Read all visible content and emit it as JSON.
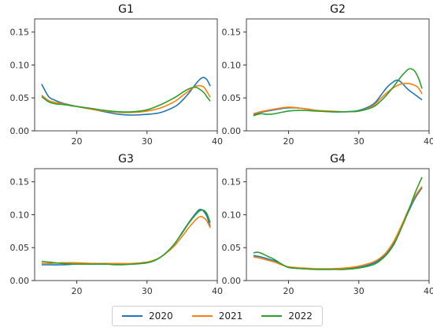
{
  "chart_data": [
    {
      "type": "line",
      "title": "G1",
      "xlim": [
        14,
        40
      ],
      "ylim": [
        0,
        0.17
      ],
      "xticks": [
        "20",
        "30",
        "40"
      ],
      "yticks": [
        "0.00",
        "0.05",
        "0.10",
        "0.15"
      ],
      "series": [
        {
          "name": "2020",
          "x": [
            15,
            16,
            17,
            18,
            20,
            22,
            24,
            26,
            28,
            30,
            32,
            34,
            35,
            36,
            37,
            37.5,
            38,
            38.5,
            39
          ],
          "y": [
            0.071,
            0.052,
            0.046,
            0.042,
            0.037,
            0.033,
            0.029,
            0.025,
            0.024,
            0.025,
            0.028,
            0.037,
            0.046,
            0.058,
            0.072,
            0.078,
            0.081,
            0.078,
            0.068
          ]
        },
        {
          "name": "2021",
          "x": [
            15,
            16,
            17,
            18,
            20,
            22,
            24,
            26,
            28,
            30,
            32,
            34,
            35,
            36,
            37,
            38,
            38.5,
            39
          ],
          "y": [
            0.054,
            0.046,
            0.043,
            0.041,
            0.037,
            0.033,
            0.03,
            0.028,
            0.028,
            0.03,
            0.035,
            0.045,
            0.053,
            0.061,
            0.068,
            0.067,
            0.06,
            0.051
          ]
        },
        {
          "name": "2022",
          "x": [
            15,
            16,
            17,
            18,
            20,
            22,
            24,
            26,
            28,
            30,
            32,
            34,
            35,
            36,
            37,
            38,
            38.5,
            39
          ],
          "y": [
            0.052,
            0.044,
            0.041,
            0.04,
            0.037,
            0.034,
            0.031,
            0.029,
            0.029,
            0.032,
            0.04,
            0.051,
            0.058,
            0.064,
            0.066,
            0.059,
            0.052,
            0.045
          ]
        }
      ],
      "colors": [
        "#1f77b4",
        "#ff7f0e",
        "#2ca02c"
      ]
    },
    {
      "type": "line",
      "title": "G2",
      "xlim": [
        14,
        40
      ],
      "ylim": [
        0,
        0.17
      ],
      "xticks": [
        "20",
        "30",
        "40"
      ],
      "yticks": [
        "0.00",
        "0.05",
        "0.10",
        "0.15"
      ],
      "series": [
        {
          "name": "2020",
          "x": [
            15,
            16,
            18,
            20,
            22,
            24,
            26,
            28,
            30,
            32,
            33,
            34,
            35,
            35.5,
            36,
            37,
            38,
            39
          ],
          "y": [
            0.025,
            0.028,
            0.032,
            0.035,
            0.034,
            0.031,
            0.029,
            0.029,
            0.031,
            0.04,
            0.052,
            0.066,
            0.075,
            0.077,
            0.074,
            0.063,
            0.055,
            0.047
          ]
        },
        {
          "name": "2021",
          "x": [
            15,
            16,
            18,
            20,
            22,
            24,
            26,
            28,
            30,
            32,
            33,
            34,
            35,
            36,
            37,
            38,
            38.5,
            39
          ],
          "y": [
            0.026,
            0.029,
            0.033,
            0.036,
            0.034,
            0.031,
            0.03,
            0.029,
            0.03,
            0.038,
            0.048,
            0.058,
            0.066,
            0.071,
            0.072,
            0.069,
            0.065,
            0.056
          ]
        },
        {
          "name": "2022",
          "x": [
            15,
            16,
            17,
            18,
            20,
            22,
            24,
            26,
            28,
            30,
            32,
            33,
            34,
            35,
            36,
            37,
            37.5,
            38,
            38.5,
            39
          ],
          "y": [
            0.023,
            0.026,
            0.025,
            0.026,
            0.03,
            0.031,
            0.03,
            0.029,
            0.029,
            0.03,
            0.036,
            0.044,
            0.055,
            0.068,
            0.082,
            0.093,
            0.094,
            0.09,
            0.08,
            0.064
          ]
        }
      ],
      "colors": [
        "#1f77b4",
        "#ff7f0e",
        "#2ca02c"
      ]
    },
    {
      "type": "line",
      "title": "G3",
      "xlim": [
        14,
        40
      ],
      "ylim": [
        0,
        0.17
      ],
      "xticks": [
        "20",
        "30",
        "40"
      ],
      "yticks": [
        "0.00",
        "0.05",
        "0.10",
        "0.15"
      ],
      "series": [
        {
          "name": "2020",
          "x": [
            15,
            16,
            18,
            20,
            22,
            24,
            26,
            28,
            30,
            31,
            32,
            33,
            34,
            35,
            36,
            37,
            37.5,
            38,
            38.5,
            39
          ],
          "y": [
            0.024,
            0.024,
            0.024,
            0.025,
            0.025,
            0.025,
            0.025,
            0.025,
            0.027,
            0.03,
            0.036,
            0.045,
            0.057,
            0.073,
            0.089,
            0.103,
            0.108,
            0.106,
            0.098,
            0.082
          ]
        },
        {
          "name": "2021",
          "x": [
            15,
            16,
            18,
            20,
            22,
            24,
            26,
            28,
            30,
            31,
            32,
            33,
            34,
            35,
            36,
            37,
            37.5,
            38,
            38.5,
            39
          ],
          "y": [
            0.026,
            0.026,
            0.027,
            0.027,
            0.026,
            0.026,
            0.026,
            0.026,
            0.028,
            0.031,
            0.036,
            0.044,
            0.054,
            0.067,
            0.081,
            0.093,
            0.097,
            0.096,
            0.091,
            0.08
          ]
        },
        {
          "name": "2022",
          "x": [
            15,
            16,
            18,
            20,
            22,
            24,
            26,
            28,
            30,
            31,
            32,
            33,
            34,
            35,
            36,
            37,
            37.5,
            38,
            38.5,
            39
          ],
          "y": [
            0.029,
            0.028,
            0.026,
            0.025,
            0.025,
            0.025,
            0.024,
            0.025,
            0.027,
            0.03,
            0.036,
            0.045,
            0.057,
            0.072,
            0.088,
            0.101,
            0.106,
            0.107,
            0.102,
            0.088
          ]
        }
      ],
      "colors": [
        "#1f77b4",
        "#ff7f0e",
        "#2ca02c"
      ]
    },
    {
      "type": "line",
      "title": "G4",
      "xlim": [
        14,
        40
      ],
      "ylim": [
        0,
        0.17
      ],
      "xticks": [
        "20",
        "30",
        "40"
      ],
      "yticks": [
        "0.00",
        "0.05",
        "0.10",
        "0.15"
      ],
      "series": [
        {
          "name": "2020",
          "x": [
            15,
            16,
            17,
            18,
            19,
            20,
            22,
            24,
            26,
            28,
            30,
            32,
            33,
            34,
            35,
            36,
            37,
            38,
            39
          ],
          "y": [
            0.038,
            0.036,
            0.033,
            0.03,
            0.025,
            0.02,
            0.018,
            0.017,
            0.017,
            0.018,
            0.02,
            0.026,
            0.032,
            0.042,
            0.058,
            0.08,
            0.103,
            0.125,
            0.141
          ]
        },
        {
          "name": "2021",
          "x": [
            15,
            16,
            17,
            18,
            19,
            20,
            22,
            24,
            26,
            28,
            30,
            32,
            33,
            34,
            35,
            36,
            37,
            38,
            39
          ],
          "y": [
            0.036,
            0.034,
            0.031,
            0.028,
            0.024,
            0.021,
            0.019,
            0.018,
            0.018,
            0.019,
            0.022,
            0.028,
            0.034,
            0.044,
            0.06,
            0.082,
            0.106,
            0.128,
            0.143
          ]
        },
        {
          "name": "2022",
          "x": [
            15,
            15.5,
            16,
            17,
            18,
            19,
            20,
            22,
            24,
            26,
            28,
            30,
            32,
            33,
            34,
            35,
            36,
            37,
            38,
            39
          ],
          "y": [
            0.042,
            0.043,
            0.042,
            0.037,
            0.032,
            0.025,
            0.02,
            0.018,
            0.017,
            0.017,
            0.017,
            0.019,
            0.024,
            0.03,
            0.04,
            0.055,
            0.078,
            0.104,
            0.133,
            0.157
          ]
        }
      ],
      "colors": [
        "#1f77b4",
        "#ff7f0e",
        "#2ca02c"
      ]
    }
  ],
  "legend": {
    "items": [
      {
        "label": "2020",
        "color": "#1f77b4"
      },
      {
        "label": "2021",
        "color": "#ff7f0e"
      },
      {
        "label": "2022",
        "color": "#2ca02c"
      }
    ]
  }
}
